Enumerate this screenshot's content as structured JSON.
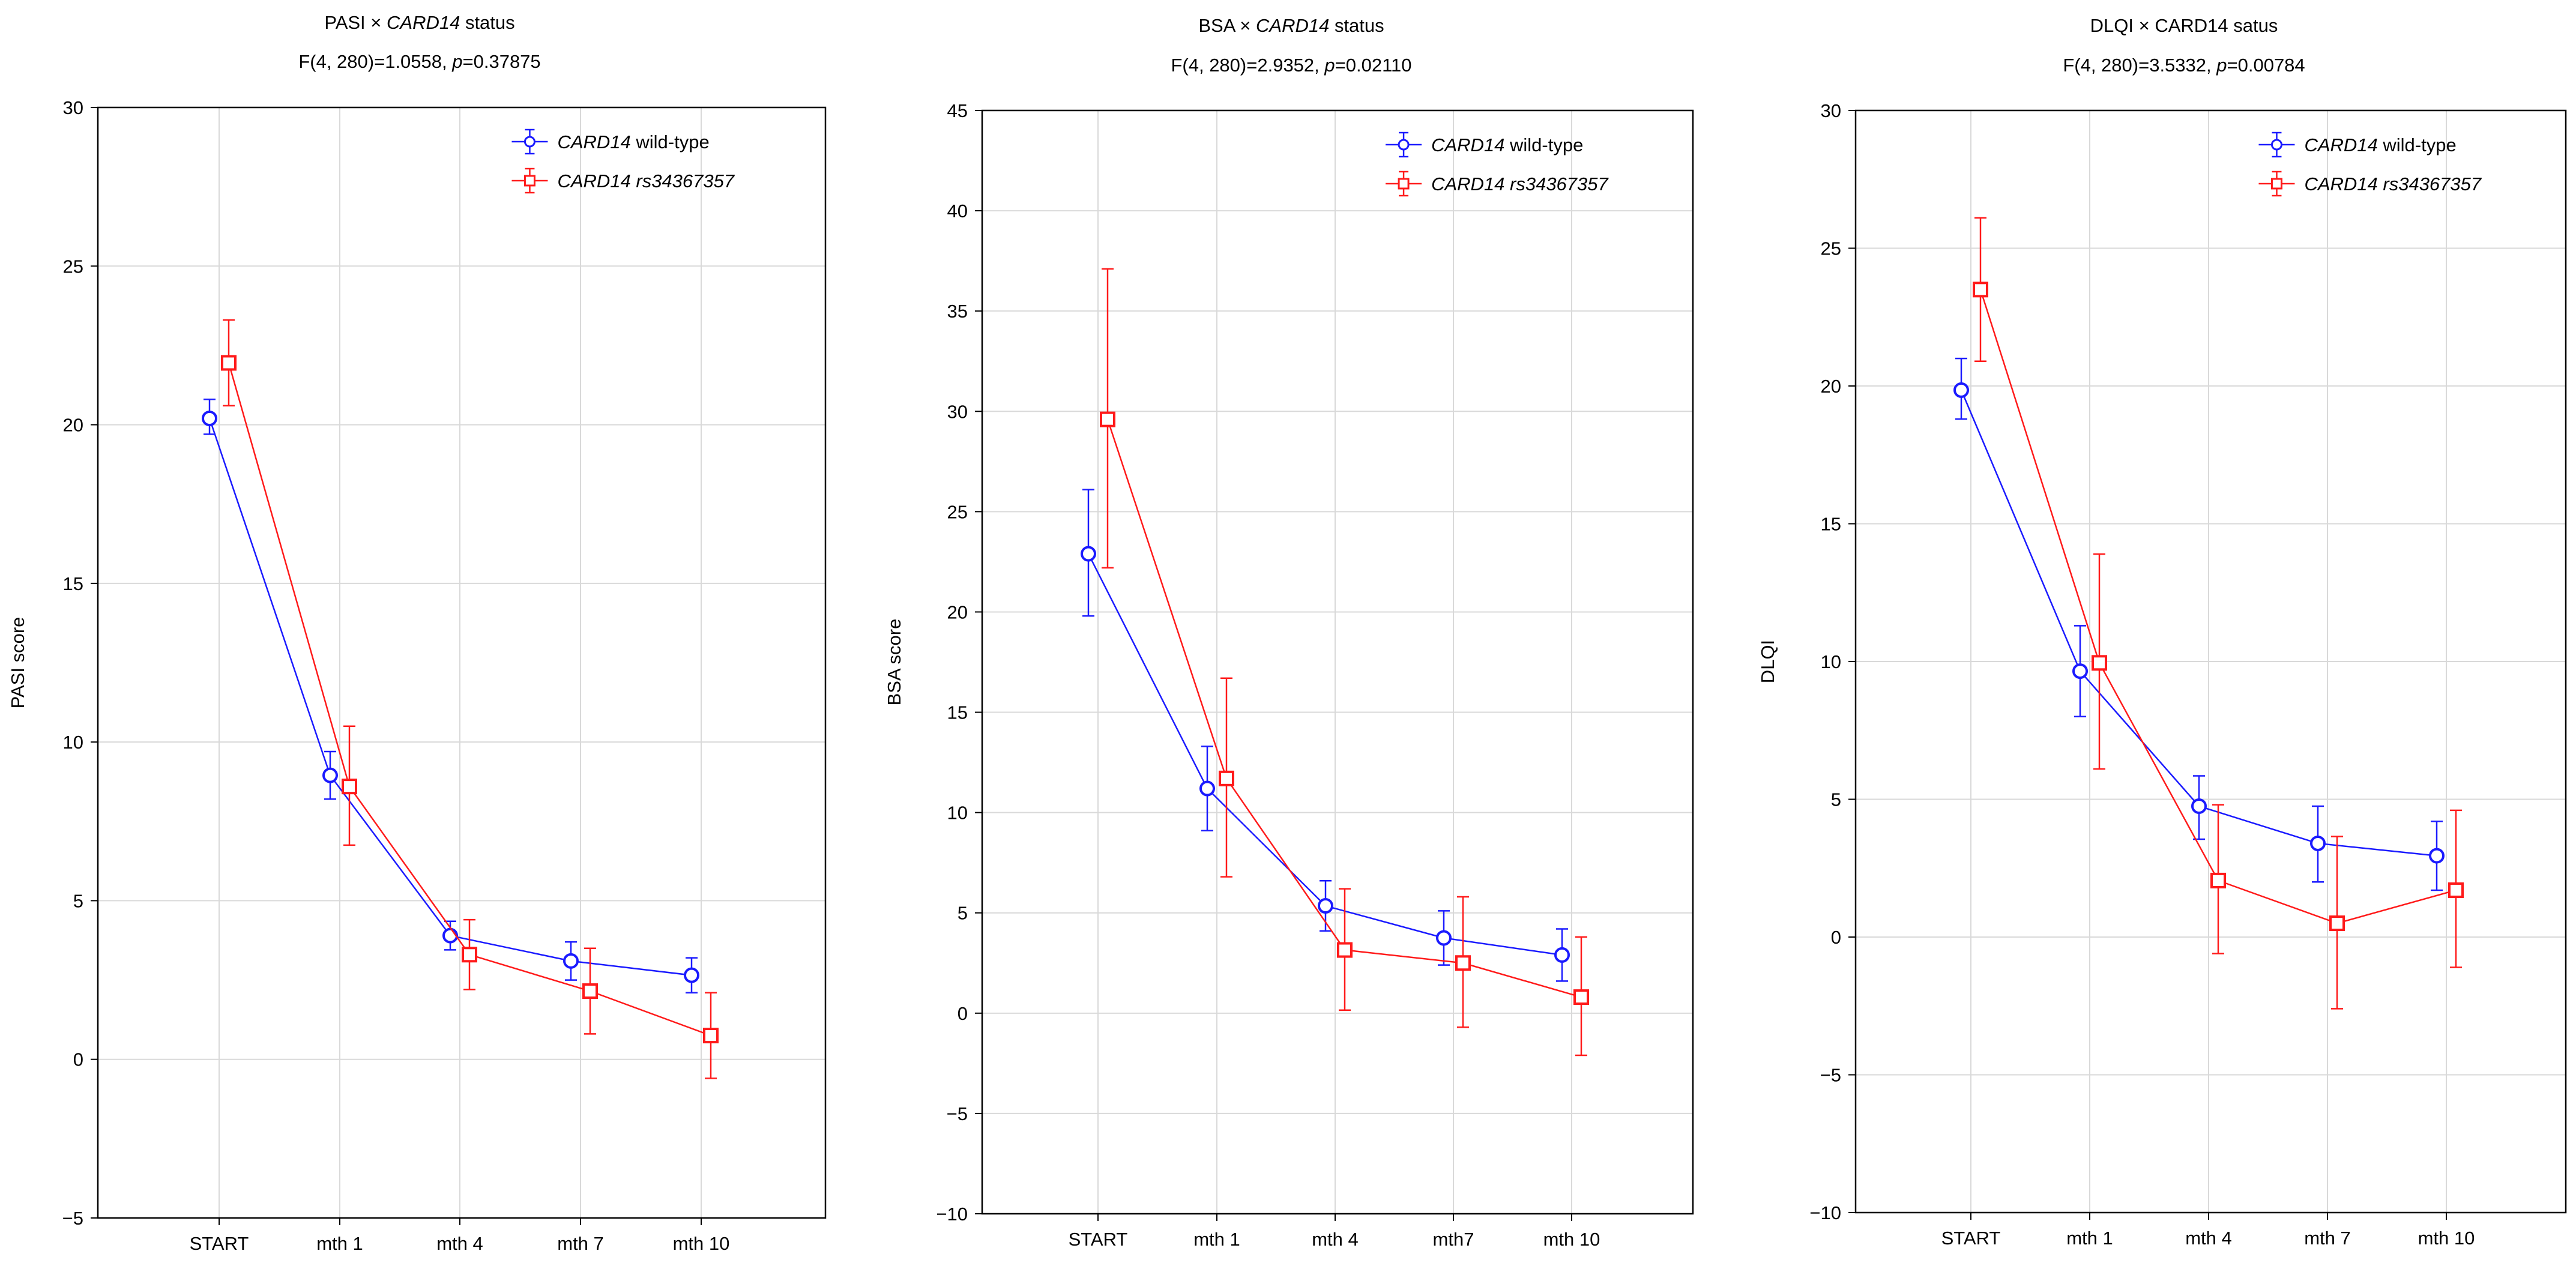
{
  "colors": {
    "wild_type": "#1a1aff",
    "variant": "#ff1a1a",
    "grid": "#d9d9d9",
    "axis": "#000000"
  },
  "chart_data": [
    {
      "type": "line",
      "title": {
        "prefix": "PASI × ",
        "italic": "CARD14",
        "suffix": " status"
      },
      "stat": {
        "prefix": "F(4, 280)=1.0558, ",
        "italic": "p",
        "suffix": "=0.37875"
      },
      "ylabel": "PASI score",
      "xlabel": "",
      "ylim": [
        -5,
        30
      ],
      "yticks": [
        -5,
        0,
        5,
        10,
        15,
        20,
        25,
        30
      ],
      "ytick_labels": [
        "−5",
        "0",
        "5",
        "10",
        "15",
        "20",
        "25",
        "30"
      ],
      "categories": [
        "START",
        "mth 1",
        "mth 4",
        "mth 7",
        "mth 10"
      ],
      "grid": true,
      "legend": "top-right",
      "series": [
        {
          "name_italic": "CARD14",
          "name_rest": " wild-type",
          "marker": "circle",
          "color": "#1a1aff",
          "values": [
            20.2,
            8.95,
            3.9,
            3.1,
            2.65
          ],
          "err_low": [
            19.7,
            8.2,
            3.45,
            2.5,
            2.1
          ],
          "err_high": [
            20.8,
            9.7,
            4.35,
            3.7,
            3.2
          ]
        },
        {
          "name_italic": "CARD14 rs34367357",
          "name_rest": "",
          "marker": "square",
          "color": "#ff1a1a",
          "values": [
            21.95,
            8.6,
            3.3,
            2.15,
            0.75
          ],
          "err_low": [
            20.6,
            6.75,
            2.2,
            0.8,
            -0.6
          ],
          "err_high": [
            23.3,
            10.5,
            4.4,
            3.5,
            2.1
          ]
        }
      ]
    },
    {
      "type": "line",
      "title": {
        "prefix": "BSA × ",
        "italic": "CARD14",
        "suffix": " status"
      },
      "stat": {
        "prefix": "F(4, 280)=2.9352, ",
        "italic": "p",
        "suffix": "=0.02110"
      },
      "ylabel": "BSA score",
      "xlabel": "",
      "ylim": [
        -10,
        45
      ],
      "yticks": [
        -10,
        -5,
        0,
        5,
        10,
        15,
        20,
        25,
        30,
        35,
        40,
        45
      ],
      "ytick_labels": [
        "−10",
        "−5",
        "0",
        "5",
        "10",
        "15",
        "20",
        "25",
        "30",
        "35",
        "40",
        "45"
      ],
      "categories": [
        "START",
        "mth 1",
        "mth 4",
        "mth7",
        "mth 10"
      ],
      "grid": true,
      "legend": "top-right",
      "series": [
        {
          "name_italic": "CARD14",
          "name_rest": " wild-type",
          "marker": "circle",
          "color": "#1a1aff",
          "values": [
            22.9,
            11.2,
            5.35,
            3.75,
            2.9
          ],
          "err_low": [
            19.8,
            9.1,
            4.1,
            2.4,
            1.6
          ],
          "err_high": [
            26.1,
            13.3,
            6.6,
            5.1,
            4.2
          ]
        },
        {
          "name_italic": "CARD14 rs34367357",
          "name_rest": "",
          "marker": "square",
          "color": "#ff1a1a",
          "values": [
            29.6,
            11.7,
            3.15,
            2.5,
            0.8
          ],
          "err_low": [
            22.2,
            6.8,
            0.15,
            -0.7,
            -2.1
          ],
          "err_high": [
            37.1,
            16.7,
            6.2,
            5.8,
            3.8
          ]
        }
      ]
    },
    {
      "type": "line",
      "title": {
        "prefix": "DLQI × CARD14 satus",
        "italic": "",
        "suffix": ""
      },
      "stat": {
        "prefix": "F(4, 280)=3.5332, ",
        "italic": "p",
        "suffix": "=0.00784"
      },
      "ylabel": "DLQI",
      "xlabel": "",
      "ylim": [
        -10,
        30
      ],
      "yticks": [
        -10,
        -5,
        0,
        5,
        10,
        15,
        20,
        25,
        30
      ],
      "ytick_labels": [
        "−10",
        "−5",
        "0",
        "5",
        "10",
        "15",
        "20",
        "25",
        "30"
      ],
      "categories": [
        "START",
        "mth 1",
        "mth 4",
        "mth 7",
        "mth 10"
      ],
      "grid": true,
      "legend": "top-right",
      "series": [
        {
          "name_italic": "CARD14",
          "name_rest": " wild-type",
          "marker": "circle",
          "color": "#1a1aff",
          "values": [
            19.85,
            9.65,
            4.75,
            3.4,
            2.95
          ],
          "err_low": [
            18.8,
            8.0,
            3.55,
            2.0,
            1.7
          ],
          "err_high": [
            21.0,
            11.3,
            5.85,
            4.75,
            4.2
          ]
        },
        {
          "name_italic": "CARD14 rs34367357",
          "name_rest": "",
          "marker": "square",
          "color": "#ff1a1a",
          "values": [
            23.5,
            9.95,
            2.05,
            0.5,
            1.7
          ],
          "err_low": [
            20.9,
            6.1,
            -0.6,
            -2.6,
            -1.1
          ],
          "err_high": [
            26.1,
            13.9,
            4.8,
            3.65,
            4.6
          ]
        }
      ]
    }
  ]
}
